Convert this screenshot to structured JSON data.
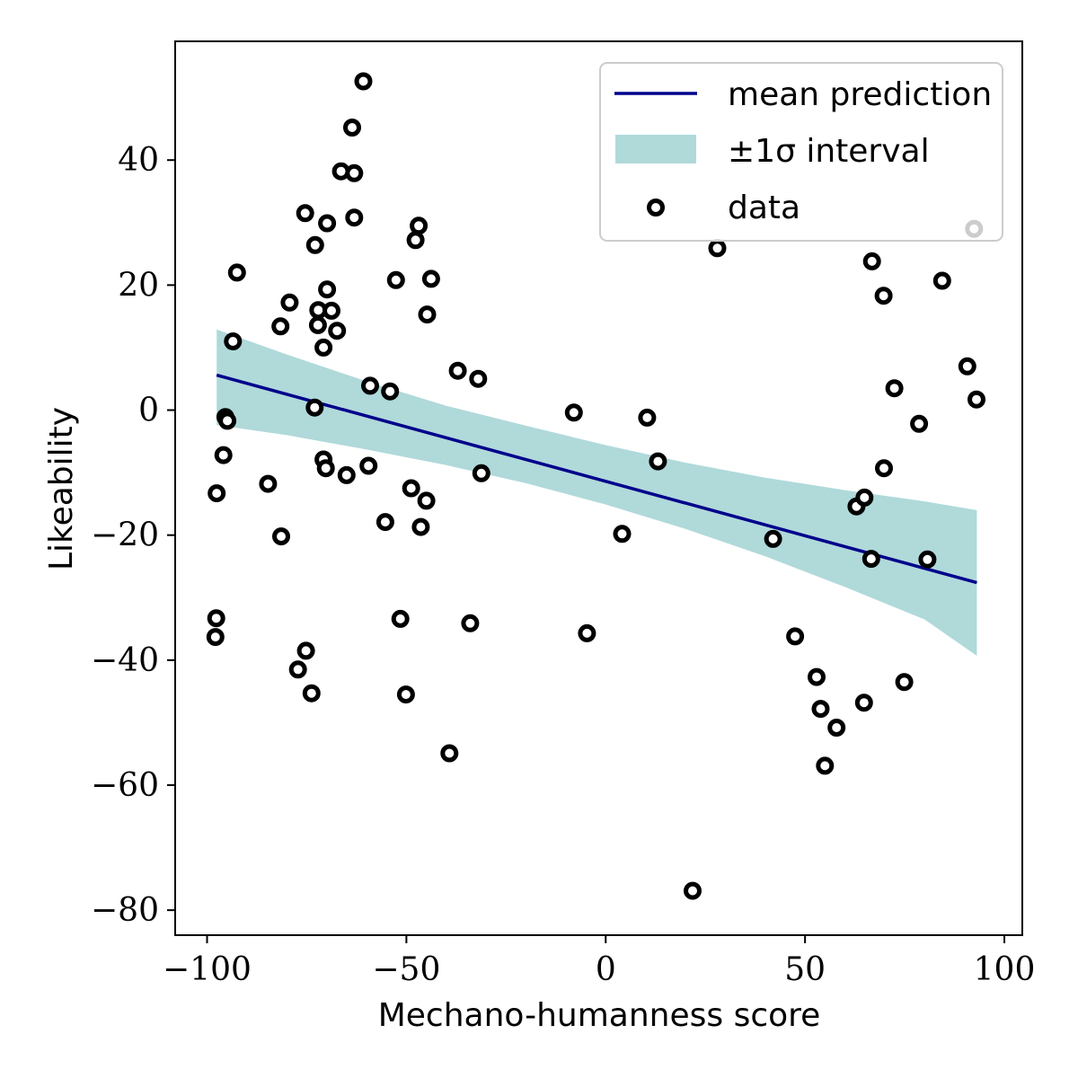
{
  "chart_data": {
    "type": "scatter",
    "title": "",
    "xlabel": "Mechano-humanness score",
    "ylabel": "Likeability",
    "xlim": [
      -108,
      104.5
    ],
    "ylim": [
      -84,
      59
    ],
    "xticks": [
      -100,
      -50,
      0,
      50,
      100
    ],
    "xtick_labels": [
      "−100",
      "−50",
      "0",
      "50",
      "100"
    ],
    "yticks": [
      -80,
      -60,
      -40,
      -20,
      0,
      20,
      40
    ],
    "ytick_labels": [
      "−80",
      "−60",
      "−40",
      "−20",
      "0",
      "20",
      "40"
    ],
    "legend_position": "top-right",
    "colors": {
      "line": "#00008b",
      "band": "#b0d9da",
      "marker_edge": "#000000",
      "marker_face": "#ffffff"
    },
    "series": [
      {
        "name": "mean prediction",
        "kind": "line",
        "x": [
          -97.6,
          93.1
        ],
        "y": [
          5.6,
          -27.6
        ]
      },
      {
        "name": "±1σ interval",
        "kind": "band",
        "x": [
          -97.6,
          -80,
          -60,
          -40,
          -20,
          0,
          20,
          40,
          60,
          80,
          93.1
        ],
        "lower": [
          -2.4,
          -4.0,
          -6.3,
          -8.8,
          -11.7,
          -15.1,
          -19.0,
          -23.4,
          -28.3,
          -33.5,
          -39.3
        ],
        "upper": [
          12.9,
          8.9,
          4.6,
          0.7,
          -2.5,
          -5.6,
          -8.4,
          -10.8,
          -12.8,
          -14.6,
          -16.0
        ]
      },
      {
        "name": "data",
        "kind": "scatter",
        "points": [
          [
            -60.8,
            52.6
          ],
          [
            -63.6,
            45.2
          ],
          [
            -66.4,
            38.2
          ],
          [
            -63.1,
            37.9
          ],
          [
            -75.4,
            31.5
          ],
          [
            -69.9,
            29.9
          ],
          [
            -63.1,
            30.8
          ],
          [
            -46.9,
            29.5
          ],
          [
            -72.9,
            26.4
          ],
          [
            -47.7,
            27.2
          ],
          [
            -92.5,
            22.0
          ],
          [
            -79.3,
            17.2
          ],
          [
            -69.9,
            19.3
          ],
          [
            -52.6,
            20.8
          ],
          [
            -43.8,
            21.0
          ],
          [
            -72.1,
            16.0
          ],
          [
            -68.8,
            15.9
          ],
          [
            -72.2,
            13.6
          ],
          [
            -81.6,
            13.4
          ],
          [
            -67.4,
            12.7
          ],
          [
            -44.8,
            15.3
          ],
          [
            -93.5,
            11.0
          ],
          [
            -70.8,
            10.0
          ],
          [
            -37.1,
            6.3
          ],
          [
            -59.1,
            3.9
          ],
          [
            -32.0,
            5.0
          ],
          [
            -54.1,
            3.0
          ],
          [
            -73.0,
            0.4
          ],
          [
            -95.4,
            -1.1
          ],
          [
            -94.9,
            -1.7
          ],
          [
            -95.9,
            -7.2
          ],
          [
            -70.8,
            -7.9
          ],
          [
            -70.2,
            -9.3
          ],
          [
            -59.5,
            -8.9
          ],
          [
            -65.0,
            -10.4
          ],
          [
            -31.2,
            -10.1
          ],
          [
            -97.6,
            -13.3
          ],
          [
            -84.7,
            -11.8
          ],
          [
            -48.8,
            -12.5
          ],
          [
            -45.0,
            -14.5
          ],
          [
            -55.3,
            -17.9
          ],
          [
            -46.4,
            -18.7
          ],
          [
            -81.4,
            -20.2
          ],
          [
            -51.5,
            -33.4
          ],
          [
            -34.0,
            -34.1
          ],
          [
            -97.7,
            -33.3
          ],
          [
            -97.9,
            -36.3
          ],
          [
            -75.2,
            -38.5
          ],
          [
            -77.2,
            -41.5
          ],
          [
            -73.8,
            -45.3
          ],
          [
            -50.1,
            -45.5
          ],
          [
            -39.2,
            -54.9
          ],
          [
            -8.0,
            -0.4
          ],
          [
            10.4,
            -1.2
          ],
          [
            13.1,
            -8.2
          ],
          [
            4.1,
            -19.8
          ],
          [
            -4.7,
            -35.7
          ],
          [
            21.8,
            -76.9
          ],
          [
            28.0,
            25.9
          ],
          [
            42.0,
            -20.6
          ],
          [
            47.5,
            -36.2
          ],
          [
            52.9,
            -42.7
          ],
          [
            53.9,
            -47.8
          ],
          [
            55.0,
            -56.9
          ],
          [
            57.9,
            -50.8
          ],
          [
            62.9,
            -15.4
          ],
          [
            64.9,
            -14.0
          ],
          [
            66.6,
            -23.8
          ],
          [
            64.8,
            -46.8
          ],
          [
            66.8,
            23.8
          ],
          [
            69.7,
            18.3
          ],
          [
            69.8,
            -9.3
          ],
          [
            72.4,
            3.5
          ],
          [
            74.9,
            -43.5
          ],
          [
            78.6,
            -2.2
          ],
          [
            80.7,
            -23.9
          ],
          [
            84.4,
            20.7
          ],
          [
            90.7,
            7.0
          ],
          [
            93.0,
            1.7
          ],
          [
            92.4,
            29.0
          ]
        ]
      }
    ]
  }
}
